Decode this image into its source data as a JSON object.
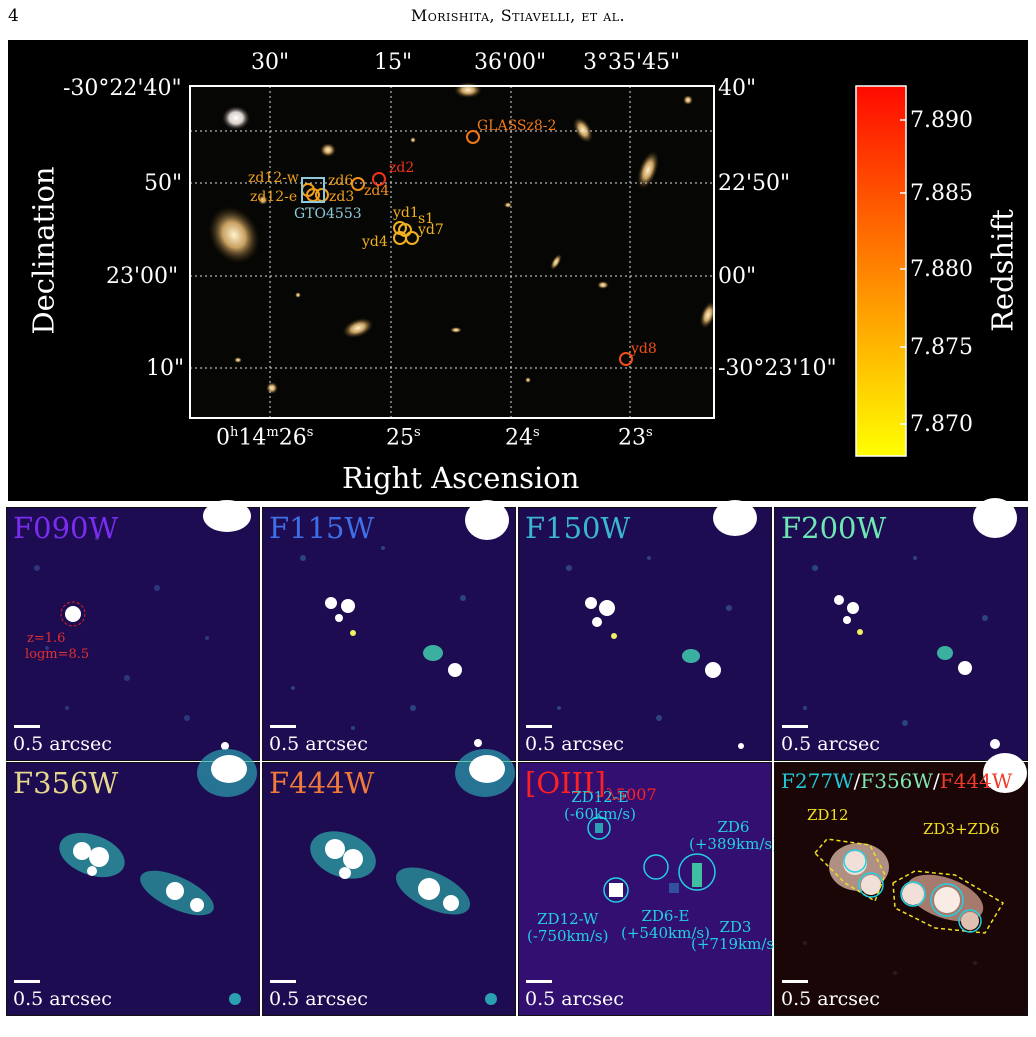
{
  "header": {
    "page_number": "4",
    "running_head": "Morishita, Stiavelli, et al."
  },
  "top_panel": {
    "ylabel": "Declination",
    "xlabel": "Right Ascension",
    "top_ticks": [
      "30\"",
      "15\"",
      "36'00\"",
      "3°35'45\""
    ],
    "left_ticks": [
      "-30°22'40\"",
      "50\"",
      "23'00\"",
      "10\""
    ],
    "right_ticks": [
      "40\"",
      "22'50\"",
      "00\"",
      "-30°23'10\""
    ],
    "colorbar": {
      "label": "Redshift",
      "ticks": [
        "7.890",
        "7.885",
        "7.880",
        "7.875",
        "7.870"
      ],
      "color_top": "#ff0a00",
      "color_bottom": "#ffff00"
    },
    "sources": {
      "glass": "GLASSz8-2",
      "zd2": "zd2",
      "zd12w": "zd12-w",
      "zd6": "zd6",
      "zd4": "zd4",
      "zd12e": "zd12-e",
      "zd3": "zd3",
      "gto": "GTO4553",
      "yd1": "yd1",
      "s1": "s1",
      "yd7": "yd7",
      "yd4": "yd4",
      "yd8": "yd8"
    }
  },
  "ra_labels": {
    "h": "0",
    "m": "14",
    "s26": "26",
    "s25": "25",
    "s24": "24",
    "s23": "23"
  },
  "thumbnails": [
    {
      "label": "F090W",
      "color": "#7a2cf0"
    },
    {
      "label": "F115W",
      "color": "#3f6fe6"
    },
    {
      "label": "F150W",
      "color": "#3ab6d0"
    },
    {
      "label": "F200W",
      "color": "#6ee6b4"
    },
    {
      "label": "F356W",
      "color": "#e6d88c"
    },
    {
      "label": "F444W",
      "color": "#f07a3a"
    }
  ],
  "oiii": {
    "label": "[OIII]",
    "sub": "λ5007",
    "color": "#ff2020",
    "zd12e": "ZD12-E",
    "zd12e_v": "(-60km/s)",
    "zd12w": "ZD12-W",
    "zd12w_v": "(-750km/s)",
    "zd6e": "ZD6-E",
    "zd6e_v": "(+540km/s)",
    "zd6": "ZD6",
    "zd6_v": "(+389km/s)",
    "zd3": "ZD3",
    "zd3_v": "(+719km/s)"
  },
  "rgb": {
    "f277": "F277W",
    "f356": "F356W",
    "f444": "F444W",
    "zd12": "ZD12",
    "zd3zd6": "ZD3+ZD6",
    "sep": "/"
  },
  "f090_annot": {
    "z": "z=1.6",
    "logm": "logm=8.5"
  },
  "scale_text": "0.5 arcsec"
}
